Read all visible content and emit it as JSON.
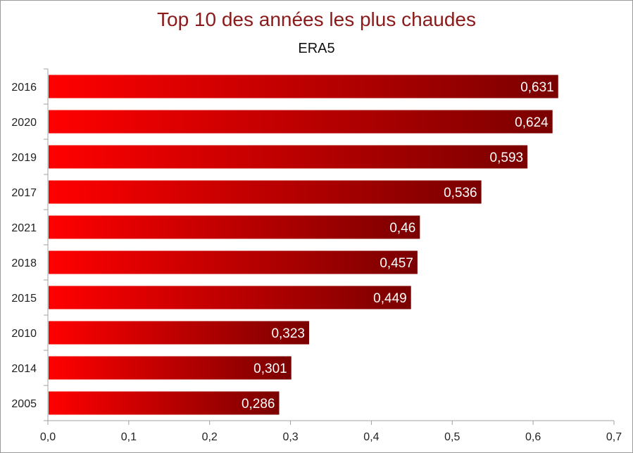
{
  "chart_data": {
    "type": "bar",
    "orientation": "horizontal",
    "title": "Top 10 des années les plus chaudes",
    "subtitle": "ERA5",
    "categories": [
      "2016",
      "2020",
      "2019",
      "2017",
      "2021",
      "2018",
      "2015",
      "2010",
      "2014",
      "2005"
    ],
    "values": [
      0.631,
      0.624,
      0.593,
      0.536,
      0.46,
      0.457,
      0.449,
      0.323,
      0.301,
      0.286
    ],
    "data_labels": [
      "0,631",
      "0,624",
      "0,593",
      "0,536",
      "0,46",
      "0,457",
      "0,449",
      "0,323",
      "0,301",
      "0,286"
    ],
    "xlim": [
      0,
      0.7
    ],
    "x_ticks": [
      0,
      0.1,
      0.2,
      0.3,
      0.4,
      0.5,
      0.6,
      0.7
    ],
    "x_tick_labels": [
      "0,0",
      "0,1",
      "0,2",
      "0,3",
      "0,4",
      "0,5",
      "0,6",
      "0,7"
    ],
    "grid": false,
    "legend": "none",
    "colors": {
      "bar_start": "#ff0000",
      "bar_end": "#7a0000",
      "title": "#8b1a1a",
      "axis": "#a0a0a0"
    }
  }
}
